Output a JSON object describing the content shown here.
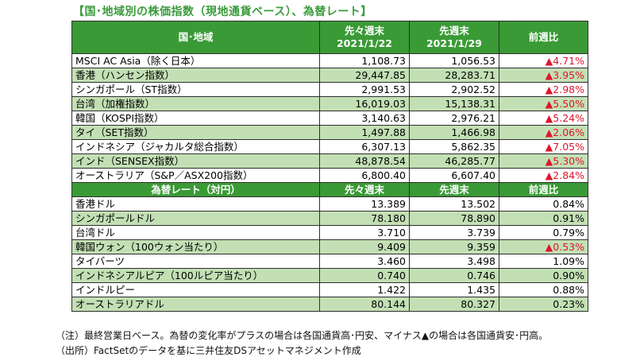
{
  "title": "【国･地域別の株価指数（現地通貨ベース）、為替レート】",
  "stock_header": {
    "region": "国･地域",
    "prev_week": "先々週末",
    "prev_week_date": "2021/1/22",
    "last_week": "先週末",
    "last_week_date": "2021/1/29",
    "change": "前週比"
  },
  "stocks": [
    {
      "name": "MSCI AC Asia（除く日本）",
      "prev": "1,108.73",
      "last": "1,056.53",
      "change": "▲4.71%",
      "negative": true
    },
    {
      "name": "香港（ハンセン指数）",
      "prev": "29,447.85",
      "last": "28,283.71",
      "change": "▲3.95%",
      "negative": true
    },
    {
      "name": "シンガポール（ST指数）",
      "prev": "2,991.53",
      "last": "2,902.52",
      "change": "▲2.98%",
      "negative": true
    },
    {
      "name": "台湾（加権指数）",
      "prev": "16,019.03",
      "last": "15,138.31",
      "change": "▲5.50%",
      "negative": true
    },
    {
      "name": "韓国（KOSPI指数）",
      "prev": "3,140.63",
      "last": "2,976.21",
      "change": "▲5.24%",
      "negative": true
    },
    {
      "name": "タイ（SET指数）",
      "prev": "1,497.88",
      "last": "1,466.98",
      "change": "▲2.06%",
      "negative": true
    },
    {
      "name": "インドネシア（ジャカルタ総合指数）",
      "prev": "6,307.13",
      "last": "5,862.35",
      "change": "▲7.05%",
      "negative": true
    },
    {
      "name": "インド（SENSEX指数）",
      "prev": "48,878.54",
      "last": "46,285.77",
      "change": "▲5.30%",
      "negative": true
    },
    {
      "name": "オーストラリア（S&P／ASX200指数）",
      "prev": "6,800.40",
      "last": "6,607.40",
      "change": "▲2.84%",
      "negative": true
    }
  ],
  "fx_header": {
    "region": "為替レート（対円）",
    "prev_week": "先々週末",
    "last_week": "先週末",
    "change": "前週比"
  },
  "fx": [
    {
      "name": "香港ドル",
      "prev": "13.389",
      "last": "13.502",
      "change": "0.84%",
      "negative": false
    },
    {
      "name": "シンガポールドル",
      "prev": "78.180",
      "last": "78.890",
      "change": "0.91%",
      "negative": false
    },
    {
      "name": "台湾ドル",
      "prev": "3.710",
      "last": "3.739",
      "change": "0.79%",
      "negative": false
    },
    {
      "name": "韓国ウォン（100ウォン当たり）",
      "prev": "9.409",
      "last": "9.359",
      "change": "▲0.53%",
      "negative": true
    },
    {
      "name": "タイバーツ",
      "prev": "3.460",
      "last": "3.498",
      "change": "1.09%",
      "negative": false
    },
    {
      "name": "インドネシアルピア（100ルピア当たり）",
      "prev": "0.740",
      "last": "0.746",
      "change": "0.90%",
      "negative": false
    },
    {
      "name": "インドルピー",
      "prev": "1.422",
      "last": "1.435",
      "change": "0.88%",
      "negative": false
    },
    {
      "name": "オーストラリアドル",
      "prev": "80.144",
      "last": "80.327",
      "change": "0.23%",
      "negative": false
    }
  ],
  "notes": {
    "note1": "（注）最終営業日ベース。為替の変化率がプラスの場合は各国通貨高･円安、マイナス▲の場合は各国通貨安･円高。",
    "note2": "（出所）FactSetのデータを基に三井住友DSアセットマネジメント作成"
  },
  "colors": {
    "header_green": "#3a9a36",
    "stripe_green": "#c3e0b5",
    "negative_red": "#e0142b",
    "title_green": "#3a9b3a"
  }
}
